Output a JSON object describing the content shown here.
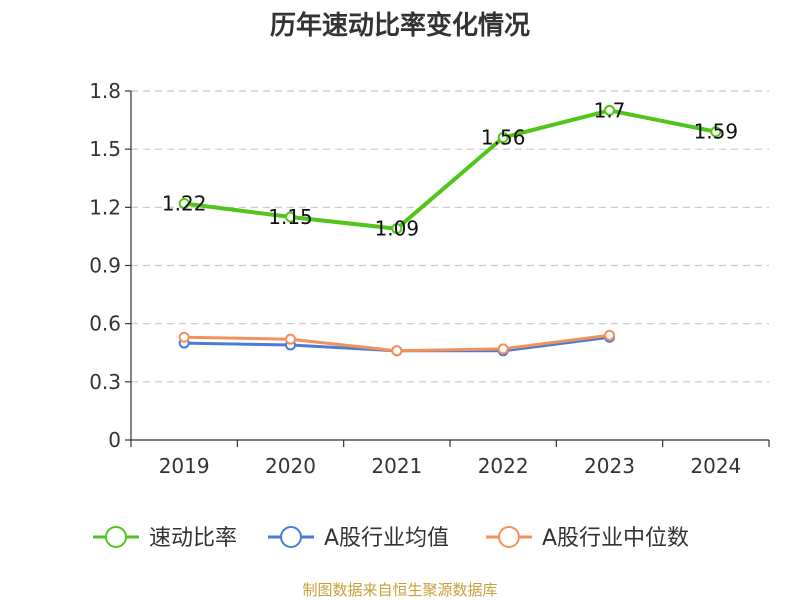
{
  "chart_data": {
    "type": "line",
    "title": "历年速动比率变化情况",
    "categories": [
      "2019",
      "2020",
      "2021",
      "2022",
      "2023",
      "2024"
    ],
    "ylim": [
      0,
      1.8
    ],
    "yticks": [
      "0",
      "0.3",
      "0.6",
      "0.9",
      "1.2",
      "1.5",
      "1.8"
    ],
    "grid": true,
    "legend_position": "bottom",
    "series": [
      {
        "name": "速动比率",
        "color": "#52c41a",
        "values": [
          1.22,
          1.15,
          1.09,
          1.56,
          1.7,
          1.59
        ],
        "labels": [
          "1.22",
          "1.15",
          "1.09",
          "1.56",
          "1.7",
          "1.59"
        ]
      },
      {
        "name": "A股行业均值",
        "color": "#4a7bd8",
        "values": [
          0.5,
          0.49,
          0.46,
          0.46,
          0.53,
          null
        ]
      },
      {
        "name": "A股行业中位数",
        "color": "#f4905a",
        "values": [
          0.53,
          0.52,
          0.46,
          0.47,
          0.54,
          null
        ]
      }
    ],
    "source": "制图数据来自恒生聚源数据库"
  }
}
